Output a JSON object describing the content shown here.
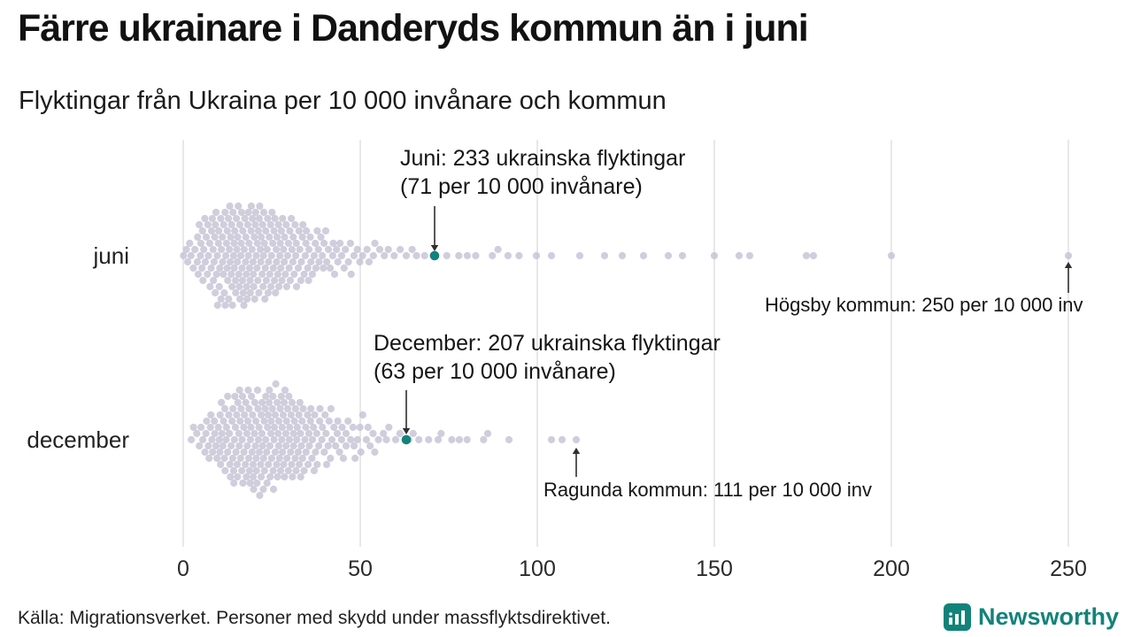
{
  "header": {
    "title": "Färre ukrainare i Danderyds kommun än i juni",
    "subtitle": "Flyktingar från Ukraina per 10 000 invånare och kommun"
  },
  "footer": {
    "source": "Källa: Migrationsverket. Personer med skydd under massflyktsdirektivet.",
    "brand": "Newsworthy"
  },
  "colors": {
    "dot": "#c8c5d6",
    "highlight": "#12837a",
    "grid": "#d2d2d2",
    "arrow": "#2e2e2e",
    "brand": "#12837a"
  },
  "chart_data": {
    "type": "scatter",
    "variant": "beeswarm",
    "title": "Färre ukrainare i Danderyds kommun än i juni",
    "subtitle": "Flyktingar från Ukraina per 10 000 invånare och kommun",
    "xlabel": "Flyktingar från Ukraina per 10 000 invånare",
    "x_ticks": [
      0,
      50,
      100,
      150,
      200,
      250
    ],
    "xlim": [
      0,
      255
    ],
    "grid": true,
    "rows": [
      {
        "label": "juni",
        "bins": [
          [
            0,
            4,
            8
          ],
          [
            4,
            8,
            18
          ],
          [
            8,
            12,
            26
          ],
          [
            12,
            16,
            30
          ],
          [
            16,
            20,
            30
          ],
          [
            20,
            24,
            28
          ],
          [
            24,
            28,
            24
          ],
          [
            28,
            32,
            20
          ],
          [
            32,
            36,
            16
          ],
          [
            36,
            40,
            12
          ],
          [
            40,
            44,
            9
          ],
          [
            44,
            48,
            7
          ],
          [
            48,
            52,
            5
          ],
          [
            52,
            56,
            4
          ],
          [
            56,
            60,
            3
          ],
          [
            60,
            65,
            3
          ],
          [
            65,
            70,
            2
          ],
          [
            70,
            76,
            2
          ],
          [
            76,
            82,
            2
          ],
          [
            82,
            88,
            2
          ],
          [
            88,
            94,
            2
          ],
          [
            94,
            100,
            2
          ]
        ],
        "outliers": [
          104,
          112,
          119,
          124,
          130,
          137,
          141,
          150,
          157,
          160,
          176,
          178,
          200,
          250
        ],
        "highlight": {
          "value": 71,
          "municipality": "Danderyds kommun",
          "refugees": 233,
          "per_10000": 71,
          "annotation": [
            "Juni: 233 ukrainska flyktingar",
            "(71 per 10 000 invånare)"
          ]
        },
        "extreme": {
          "text": "Högsby kommun: 250 per 10 000 inv",
          "municipality": "Högsby kommun",
          "value": 250
        }
      },
      {
        "label": "december",
        "bins": [
          [
            2,
            6,
            6
          ],
          [
            6,
            10,
            14
          ],
          [
            10,
            14,
            22
          ],
          [
            14,
            18,
            28
          ],
          [
            18,
            22,
            30
          ],
          [
            22,
            26,
            30
          ],
          [
            26,
            30,
            28
          ],
          [
            30,
            34,
            24
          ],
          [
            34,
            38,
            18
          ],
          [
            38,
            42,
            13
          ],
          [
            42,
            46,
            10
          ],
          [
            46,
            50,
            8
          ],
          [
            50,
            54,
            6
          ],
          [
            54,
            58,
            4
          ],
          [
            58,
            62,
            3
          ],
          [
            62,
            66,
            2
          ],
          [
            66,
            70,
            2
          ],
          [
            70,
            75,
            2
          ],
          [
            75,
            80,
            2
          ],
          [
            80,
            85,
            2
          ]
        ],
        "outliers": [
          86,
          92,
          104,
          107,
          111
        ],
        "highlight": {
          "value": 63,
          "municipality": "Danderyds kommun",
          "refugees": 207,
          "per_10000": 63,
          "annotation": [
            "December: 207 ukrainska flyktingar",
            "(63 per 10 000 invånare)"
          ]
        },
        "extreme": {
          "text": "Ragunda kommun: 111 per 10 000 inv",
          "municipality": "Ragunda kommun",
          "value": 111
        }
      }
    ]
  }
}
